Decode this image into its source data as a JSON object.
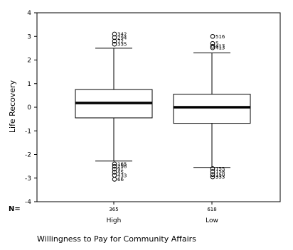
{
  "chart_data": {
    "type": "boxplot",
    "ylabel": "Life Recovery",
    "xlabel": "Willingness to Pay for Community Affairs",
    "ylim": [
      -4,
      4
    ],
    "yticks": [
      4,
      3,
      2,
      1,
      0,
      -1,
      -2,
      -3,
      -4
    ],
    "n_header": "N=",
    "categories": [
      "High",
      "Low"
    ],
    "n_values": [
      "365",
      "618"
    ],
    "boxes": [
      {
        "category": "High",
        "n": "365",
        "q1": -0.45,
        "median": 0.18,
        "q3": 0.75,
        "whisker_low": -2.28,
        "whisker_high": 2.5,
        "outliers": [
          {
            "value": 3.1,
            "label": "342"
          },
          {
            "value": 2.95,
            "label": "294"
          },
          {
            "value": 2.8,
            "label": "72"
          },
          {
            "value": 2.67,
            "label": "335"
          },
          {
            "value": -2.4,
            "label": "165"
          },
          {
            "value": -2.5,
            "label": "298"
          },
          {
            "value": -2.62,
            "label": "91"
          },
          {
            "value": -2.75,
            "label": "45"
          },
          {
            "value": -2.88,
            "label": "433"
          },
          {
            "value": -3.05,
            "label": "66"
          }
        ]
      },
      {
        "category": "Low",
        "n": "618",
        "q1": -0.68,
        "median": 0.0,
        "q3": 0.55,
        "whisker_low": -2.55,
        "whisker_high": 2.3,
        "outliers": [
          {
            "value": 3.0,
            "label": "516"
          },
          {
            "value": 2.7,
            "label": "5"
          },
          {
            "value": 2.58,
            "label": "417"
          },
          {
            "value": 2.52,
            "label": "413"
          },
          {
            "value": -2.6,
            "label": "155"
          },
          {
            "value": -2.72,
            "label": "158"
          },
          {
            "value": -2.85,
            "label": "150"
          },
          {
            "value": -2.95,
            "label": "333"
          }
        ]
      }
    ]
  }
}
